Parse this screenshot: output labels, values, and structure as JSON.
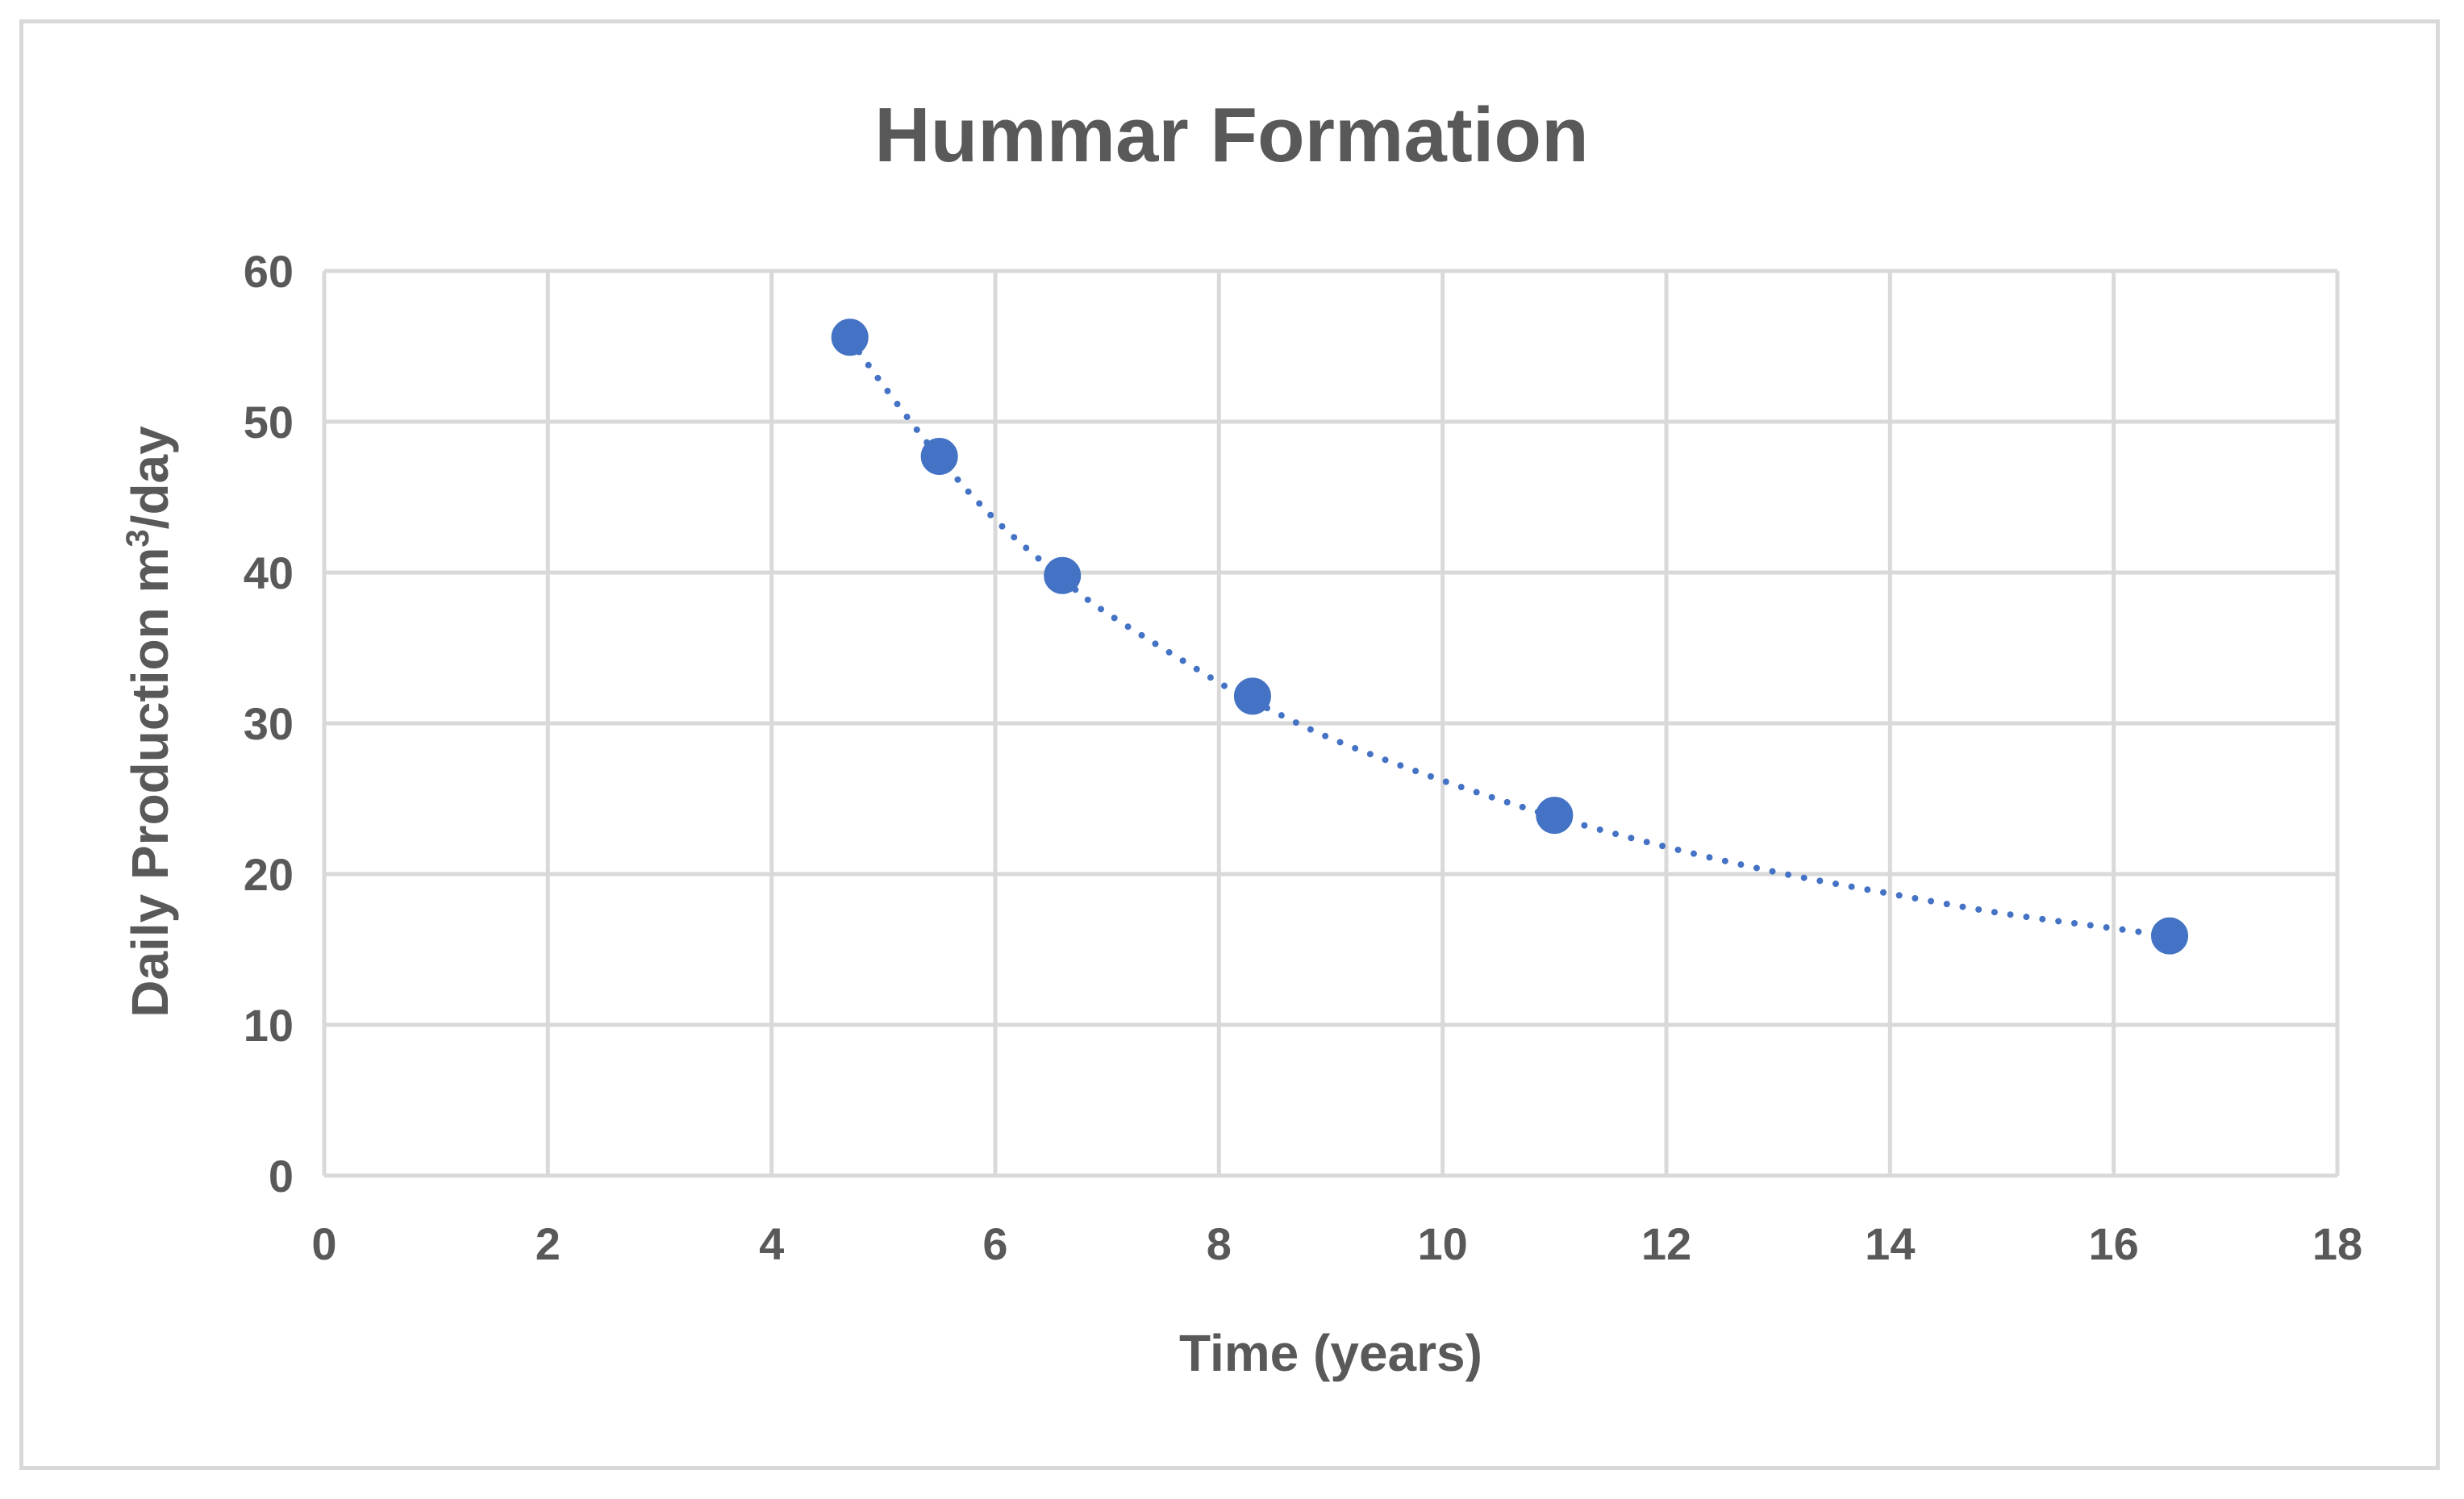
{
  "chart_data": {
    "type": "scatter",
    "title": "Hummar Formation",
    "xlabel": "Time (years)",
    "ylabel_main": "Daily Production m",
    "ylabel_sup": "3",
    "ylabel_tail": "/day",
    "xlim": [
      0,
      18
    ],
    "ylim": [
      0,
      60
    ],
    "xticks": [
      0,
      2,
      4,
      6,
      8,
      10,
      12,
      14,
      16,
      18
    ],
    "yticks": [
      0,
      10,
      20,
      30,
      40,
      50,
      60
    ],
    "grid": true,
    "legend": "none",
    "series": [
      {
        "x": [
          4.7,
          5.5,
          6.6,
          8.3,
          11.0,
          16.5
        ],
        "y": [
          55.6,
          47.7,
          39.8,
          31.8,
          23.9,
          15.9
        ]
      }
    ],
    "trendline": {
      "style": "dotted",
      "x": [
        4.7,
        5.0,
        5.5,
        6.0,
        6.6,
        7.0,
        8.0,
        8.3,
        9.0,
        10.0,
        11.0,
        12.0,
        13.0,
        14.0,
        15.0,
        16.0,
        16.5
      ],
      "y": [
        55.5,
        52.4,
        47.6,
        43.5,
        39.6,
        37.3,
        32.7,
        31.5,
        29.0,
        26.2,
        23.8,
        21.8,
        20.1,
        18.7,
        17.4,
        16.4,
        15.9
      ]
    }
  },
  "colors": {
    "marker": "#4472c4",
    "trendline": "#4472c4",
    "grid": "#d9d9d9",
    "text": "#595959",
    "frame": "#d9d9d9"
  }
}
